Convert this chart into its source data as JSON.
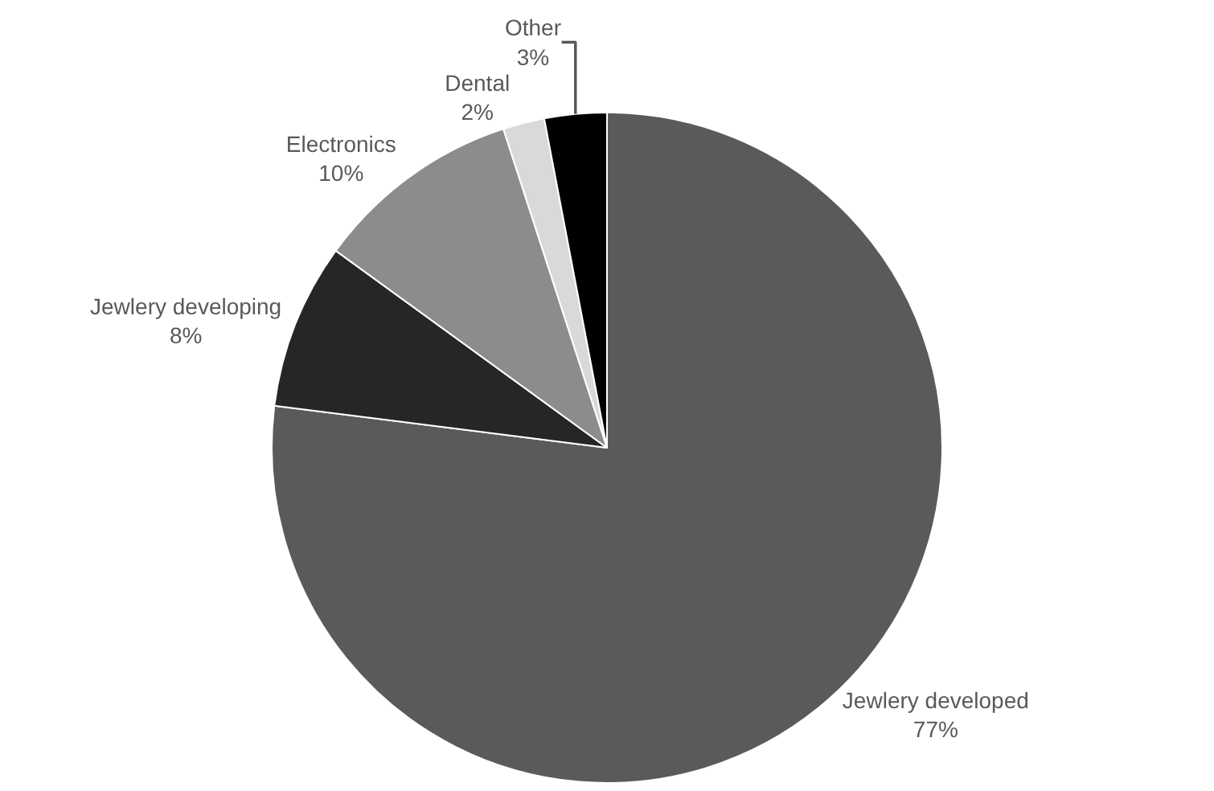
{
  "chart_data": {
    "type": "pie",
    "categories": [
      "Jewlery developed",
      "Jewlery developing",
      "Electronics",
      "Dental",
      "Other"
    ],
    "values": [
      77,
      8,
      10,
      2,
      3
    ],
    "value_labels": [
      "77%",
      "8%",
      "10%",
      "2%",
      "3%"
    ],
    "colors": [
      "#5a5a5a",
      "#262626",
      "#8c8c8c",
      "#d9d9d9",
      "#000000"
    ],
    "legend": false
  }
}
